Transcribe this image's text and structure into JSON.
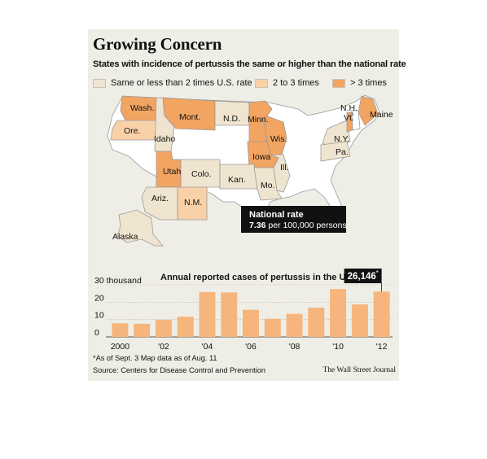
{
  "title": "Growing Concern",
  "subtitle": "States with incidence of pertussis the same or higher than the national rate",
  "legend": [
    {
      "label": "Same or less than 2 times U.S. rate",
      "color": "#efe4cf"
    },
    {
      "label": "2 to 3 times",
      "color": "#f9d1a8"
    },
    {
      "label": "> 3 times",
      "color": "#f2a461"
    }
  ],
  "map": {
    "states": {
      "wash": {
        "label": "Wash.",
        "category": 2
      },
      "ore": {
        "label": "Ore.",
        "category": 1
      },
      "idaho": {
        "label": "Idaho",
        "category": 0
      },
      "mont": {
        "label": "Mont.",
        "category": 2
      },
      "nd": {
        "label": "N.D.",
        "category": 0
      },
      "minn": {
        "label": "Minn.",
        "category": 2
      },
      "wis": {
        "label": "Wis.",
        "category": 2
      },
      "iowa": {
        "label": "Iowa",
        "category": 2
      },
      "ill": {
        "label": "Ill.",
        "category": 0
      },
      "utah": {
        "label": "Utah",
        "category": 2
      },
      "colo": {
        "label": "Colo.",
        "category": 0
      },
      "kan": {
        "label": "Kan.",
        "category": 0
      },
      "mo": {
        "label": "Mo.",
        "category": 0
      },
      "ariz": {
        "label": "Ariz.",
        "category": 0
      },
      "nm": {
        "label": "N.M.",
        "category": 1
      },
      "alaska": {
        "label": "Alaska",
        "category": 0
      },
      "ny": {
        "label": "N.Y.",
        "category": 0
      },
      "pa": {
        "label": "Pa.",
        "category": 0
      },
      "maine": {
        "label": "Maine",
        "category": 2
      },
      "vt": {
        "label": "Vt.",
        "category": 2
      },
      "nh": {
        "label": "N.H.",
        "category": 0
      }
    },
    "national_rate": {
      "title": "National rate",
      "value": "7.36",
      "unit": "per 100,000 persons"
    }
  },
  "chart_data": {
    "type": "bar",
    "title": "Annual reported cases of pertussis in the U.S.",
    "categories": [
      "2000",
      "2001",
      "2002",
      "2003",
      "2004",
      "2005",
      "2006",
      "2007",
      "2008",
      "2009",
      "2010",
      "2011",
      "2012"
    ],
    "xtick_labels": [
      "2000",
      "",
      "'02",
      "",
      "'04",
      "",
      "'06",
      "",
      "'08",
      "",
      "'10",
      "",
      "'12"
    ],
    "values": [
      7867,
      7580,
      9771,
      11647,
      25827,
      25616,
      15632,
      10454,
      13278,
      16858,
      27550,
      18719,
      26146
    ],
    "yticks": [
      0,
      10,
      20,
      30
    ],
    "ytick_labels": [
      "0",
      "10",
      "20",
      "30 thousand"
    ],
    "ylim": [
      0,
      30000
    ],
    "color": "#f6b57c",
    "callout": {
      "value": "26,146",
      "marker": "*"
    }
  },
  "footnote": "*As of Sept. 3   Map data as of Aug. 11",
  "source": "Source: Centers for Disease Control and Prevention",
  "credit": "The Wall Street Journal"
}
